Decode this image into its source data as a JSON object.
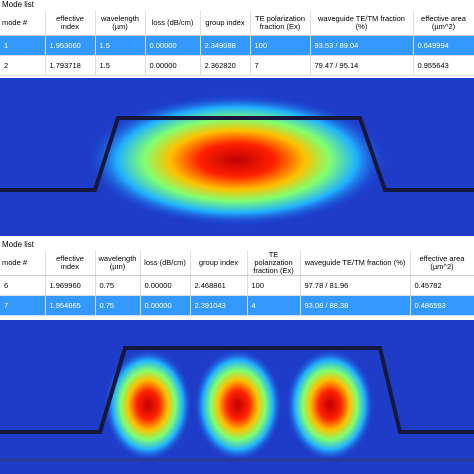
{
  "panels": [
    {
      "title": "Mode list",
      "headers": [
        "mode #",
        "effective index",
        "wavelength (µm)",
        "loss (dB/cm)",
        "group index",
        "TE polarization fraction (Ex)",
        "waveguide TE/TM fraction (%)",
        "effective area (µm^2)"
      ],
      "rows": [
        [
          "1",
          "1.953060",
          "1.5",
          "0.00000",
          "2.349088",
          "100",
          "93.53 / 89.04",
          "0.649994"
        ],
        [
          "2",
          "1.793718",
          "1.5",
          "0.00000",
          "2.362820",
          "7",
          "79.47 / 95.14",
          "0.955643"
        ]
      ]
    },
    {
      "title": "Mode list",
      "headers": [
        "mode #",
        "effective index",
        "wavelength (µm)",
        "loss (dB/cm)",
        "group index",
        "TE polarization fraction (Ex)",
        "waveguide TE/TM fraction (%)",
        "effective area (µm^2)"
      ],
      "rows": [
        [
          "6",
          "1.969960",
          "0.75",
          "0.00000",
          "2.468861",
          "100",
          "97.78 / 81.96",
          "0.45782"
        ],
        [
          "7",
          "1.954865",
          "0.75",
          "0.00000",
          "2.391043",
          "4",
          "93.08 / 88.38",
          "0.486593"
        ]
      ]
    }
  ]
}
